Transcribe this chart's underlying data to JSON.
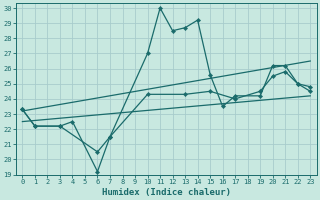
{
  "xlabel": "Humidex (Indice chaleur)",
  "bg_color": "#c8e8e0",
  "line_color": "#1a6b6b",
  "grid_color": "#a8cccc",
  "xlim": [
    -0.5,
    23.5
  ],
  "ylim": [
    19,
    30.3
  ],
  "xticks": [
    0,
    1,
    2,
    3,
    4,
    5,
    6,
    7,
    8,
    9,
    10,
    11,
    12,
    13,
    14,
    15,
    16,
    17,
    18,
    19,
    20,
    21,
    22,
    23
  ],
  "yticks": [
    19,
    20,
    21,
    22,
    23,
    24,
    25,
    26,
    27,
    28,
    29,
    30
  ],
  "lines": [
    {
      "x": [
        0,
        1,
        3,
        4,
        6,
        7,
        10,
        11,
        12,
        13,
        14,
        15,
        16,
        17,
        19,
        20,
        21,
        22,
        23
      ],
      "y": [
        23.3,
        22.2,
        22.2,
        22.5,
        19.2,
        21.5,
        27.0,
        30.0,
        28.5,
        28.7,
        29.2,
        25.6,
        23.5,
        24.2,
        24.2,
        26.2,
        26.2,
        25.0,
        24.5
      ]
    },
    {
      "x": [
        0,
        1,
        3,
        6,
        7,
        10,
        13,
        15,
        17,
        19,
        20,
        21,
        22,
        23
      ],
      "y": [
        23.3,
        22.2,
        22.2,
        20.5,
        21.5,
        24.3,
        24.3,
        24.5,
        24.0,
        24.5,
        25.5,
        25.8,
        25.0,
        24.8
      ]
    },
    {
      "x": [
        0,
        23
      ],
      "y": [
        22.5,
        24.2
      ]
    },
    {
      "x": [
        0,
        23
      ],
      "y": [
        23.2,
        26.5
      ]
    }
  ]
}
